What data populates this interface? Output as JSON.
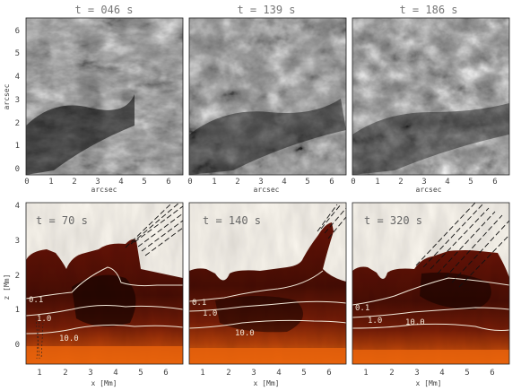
{
  "figure": {
    "top_row": {
      "panel_titles": [
        "t = 046 s",
        "t = 139 s",
        "t = 186 s"
      ],
      "x_label": "arcsec",
      "y_label": "arcsec",
      "x_ticks": [
        "0",
        "1",
        "2",
        "3",
        "4",
        "5",
        "6"
      ],
      "y_ticks": [
        "0",
        "1",
        "2",
        "3",
        "4",
        "5",
        "6"
      ]
    },
    "bottom_row": {
      "panel_times": [
        "t = 70 s",
        "t = 140 s",
        "t = 320 s"
      ],
      "x_label": "x [Mm]",
      "y_label": "z [Mm]",
      "x_ticks": [
        "1",
        "2",
        "3",
        "4",
        "5",
        "6"
      ],
      "y_ticks": [
        "0",
        "1",
        "2",
        "3",
        "4"
      ],
      "contour_labels": [
        "0.1",
        "1.0",
        "10.0"
      ]
    },
    "colors": {
      "corona_background": "#fdf9f1",
      "chromosphere_dark": "#3a0a04",
      "chromosphere_mid": "#7a1a06",
      "photosphere": "#e8620c",
      "contour": "#f2e8d8",
      "field_lines": "#111111"
    }
  }
}
